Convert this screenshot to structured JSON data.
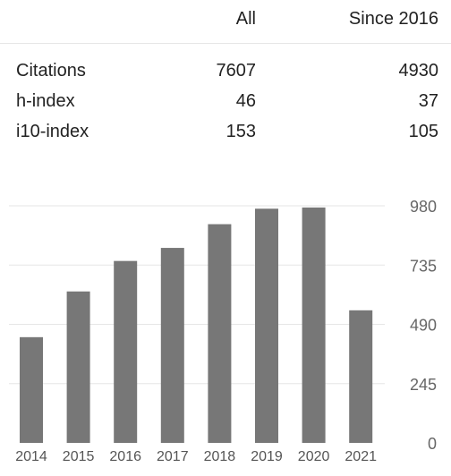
{
  "table": {
    "headers": [
      "",
      "All",
      "Since 2016"
    ],
    "rows": [
      {
        "label": "Citations",
        "all": "7607",
        "since": "4930"
      },
      {
        "label": "h-index",
        "all": "46",
        "since": "37"
      },
      {
        "label": "i10-index",
        "all": "153",
        "since": "105"
      }
    ]
  },
  "colors": {
    "bar": "#777777",
    "grid": "#e6e6e6"
  },
  "chart_data": {
    "type": "bar",
    "categories": [
      "2014",
      "2015",
      "2016",
      "2017",
      "2018",
      "2019",
      "2020",
      "2021"
    ],
    "values": [
      437,
      626,
      752,
      806,
      904,
      968,
      973,
      548
    ],
    "ylim": [
      0,
      980
    ],
    "yticks": [
      "0",
      "245",
      "490",
      "735",
      "980"
    ],
    "grid": true
  }
}
